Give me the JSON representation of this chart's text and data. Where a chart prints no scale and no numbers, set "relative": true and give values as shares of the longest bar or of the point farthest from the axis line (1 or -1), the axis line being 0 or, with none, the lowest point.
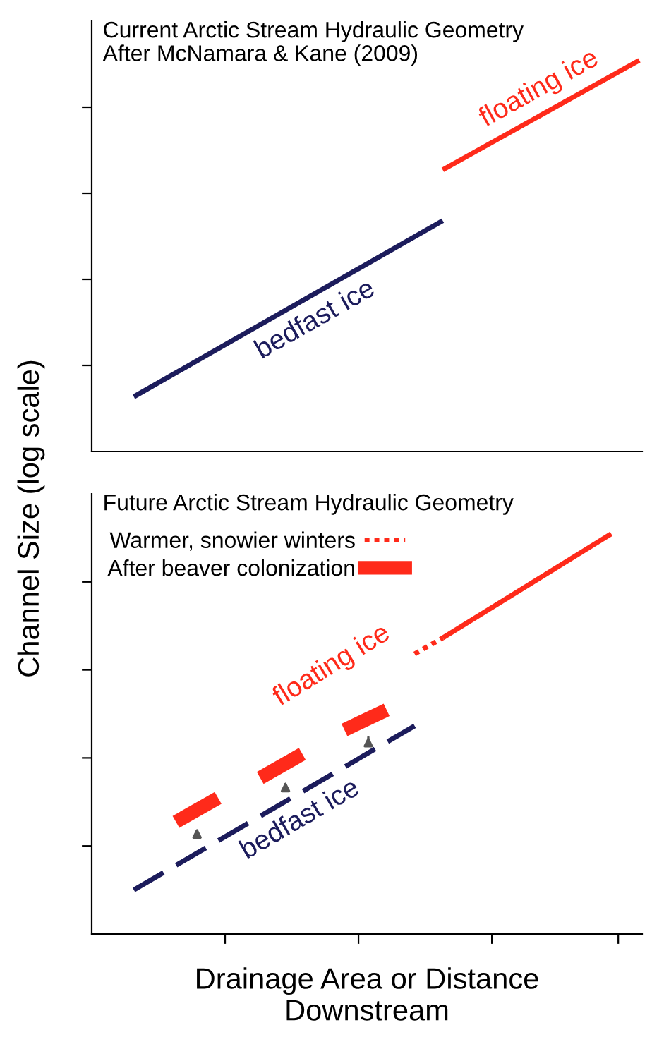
{
  "chart_data": [
    {
      "type": "line",
      "title": "Current Arctic Stream Hydraulic Geometry",
      "subtitle": "After McNamara & Kane (2009)",
      "ylabel": "Channel Size (log scale)",
      "relative": true,
      "tick_labels": false,
      "legend": false,
      "categories": [
        null,
        null,
        null,
        null,
        null,
        null,
        null,
        null,
        null,
        null,
        null,
        null,
        null,
        null,
        null,
        null,
        null,
        null,
        null,
        null,
        null,
        null,
        null,
        null,
        null,
        null,
        null,
        null,
        null,
        null,
        null,
        null,
        null,
        null,
        null,
        null,
        null
      ],
      "series": [
        {
          "color": "#1c1c5c",
          "line_style": "solid",
          "values": [
            0.14,
            null,
            null,
            null,
            null,
            null,
            null,
            null,
            null,
            null,
            null,
            null,
            null,
            null,
            null,
            null,
            null,
            null,
            null,
            null,
            null,
            null,
            0.59,
            null,
            null,
            null,
            null,
            null,
            null,
            null,
            null,
            null,
            null,
            null,
            null,
            null,
            null
          ]
        },
        {
          "color": "#ff2a1a",
          "line_style": "solid",
          "values": [
            null,
            null,
            null,
            null,
            null,
            null,
            null,
            null,
            null,
            null,
            null,
            null,
            null,
            null,
            null,
            null,
            null,
            null,
            null,
            null,
            null,
            null,
            0.72,
            null,
            null,
            null,
            null,
            null,
            null,
            null,
            null,
            null,
            null,
            null,
            null,
            null,
            1.0
          ]
        }
      ],
      "annotations": [
        "bedfast ice",
        "floating ice"
      ]
    },
    {
      "type": "line",
      "title": "Future Arctic Stream Hydraulic Geometry",
      "xlabel": "Drainage Area or Distance\nDownstream",
      "relative": true,
      "tick_labels": false,
      "legend": "top left",
      "categories": [
        null,
        null,
        null,
        null,
        null,
        null,
        null,
        null,
        null,
        null,
        null,
        null,
        null,
        null,
        null,
        null,
        null,
        null,
        null,
        null,
        null,
        null,
        null,
        null,
        null,
        null,
        null,
        null,
        null,
        null,
        null,
        null,
        null,
        null,
        null,
        null,
        null
      ],
      "series": [
        {
          "color": "#1c1c5c",
          "line_style": "dashed",
          "values": [
            0.11,
            null,
            null,
            null,
            null,
            null,
            null,
            null,
            null,
            null,
            null,
            null,
            null,
            null,
            null,
            null,
            null,
            null,
            null,
            null,
            0.52,
            null,
            null,
            null,
            null,
            null,
            null,
            null,
            null,
            null,
            null,
            null,
            null,
            null,
            null,
            null,
            null
          ]
        },
        {
          "name": "After beaver colonization",
          "color": "#ff2a1a",
          "values": [
            null,
            null,
            null,
            0.28,
            null,
            null,
            0.34,
            null,
            null,
            0.39,
            null,
            null,
            0.45,
            null,
            null,
            0.51,
            null,
            null,
            0.56,
            null,
            null,
            null,
            null,
            null,
            null,
            null,
            null,
            null,
            null,
            null,
            null,
            null,
            null,
            null,
            null,
            null,
            null
          ]
        },
        {
          "name": "Warmer, snowier winters",
          "color": "#ff2a1a",
          "line_style": "dotted",
          "values": [
            null,
            null,
            null,
            null,
            null,
            null,
            null,
            null,
            null,
            null,
            null,
            null,
            null,
            null,
            null,
            null,
            null,
            null,
            null,
            null,
            0.7,
            null,
            0.74,
            null,
            null,
            null,
            null,
            null,
            null,
            null,
            null,
            null,
            null,
            null,
            null,
            null,
            null
          ]
        },
        {
          "color": "#ff2a1a",
          "line_style": "solid",
          "values": [
            null,
            null,
            null,
            null,
            null,
            null,
            null,
            null,
            null,
            null,
            null,
            null,
            null,
            null,
            null,
            null,
            null,
            null,
            null,
            null,
            null,
            null,
            0.74,
            null,
            null,
            null,
            null,
            null,
            null,
            null,
            null,
            null,
            null,
            null,
            1.0,
            null,
            null
          ]
        }
      ],
      "annotations": [
        "bedfast ice",
        "floating ice"
      ]
    }
  ]
}
